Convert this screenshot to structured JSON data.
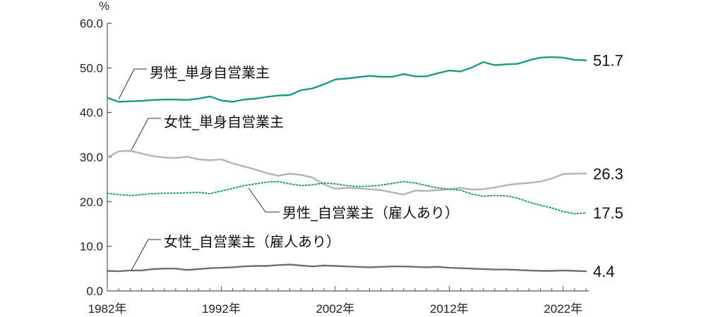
{
  "chart_data": {
    "type": "line",
    "unit": "%",
    "ylim": [
      0,
      60
    ],
    "y_ticks": [
      "0.0",
      "10.0",
      "20.0",
      "30.0",
      "40.0",
      "50.0",
      "60.0"
    ],
    "x_ticks": [
      {
        "year": 1982,
        "label": "1982年"
      },
      {
        "year": 1992,
        "label": "1992年"
      },
      {
        "year": 2002,
        "label": "2002年"
      },
      {
        "year": 2012,
        "label": "2012年"
      },
      {
        "year": 2022,
        "label": "2022年"
      }
    ],
    "x_start": 1982,
    "x_end": 2024,
    "grid": false,
    "series": [
      {
        "name": "男性_単身自営業主",
        "color": "#1a9a85",
        "dash": "solid",
        "end_label": "51.7",
        "values": [
          43.3,
          42.4,
          42.5,
          42.6,
          42.8,
          42.9,
          42.9,
          42.8,
          43.1,
          43.6,
          42.7,
          42.4,
          42.9,
          43.1,
          43.5,
          43.8,
          43.9,
          45.0,
          45.4,
          46.3,
          47.4,
          47.6,
          47.9,
          48.2,
          48.0,
          48.0,
          48.6,
          48.1,
          48.1,
          48.8,
          49.4,
          49.2,
          50.1,
          51.3,
          50.6,
          50.8,
          50.9,
          51.7,
          52.3,
          52.4,
          52.3,
          51.8,
          51.7
        ]
      },
      {
        "name": "女性_単身自営業主",
        "color": "#b4b4b4",
        "dash": "solid",
        "end_label": "26.3",
        "values": [
          29.9,
          31.3,
          31.4,
          30.8,
          30.2,
          29.9,
          29.8,
          30.1,
          29.5,
          29.3,
          29.5,
          28.6,
          27.9,
          27.2,
          26.4,
          25.8,
          26.3,
          26.0,
          25.4,
          23.9,
          22.9,
          23.1,
          23.0,
          22.8,
          22.6,
          22.1,
          21.6,
          22.5,
          22.4,
          22.6,
          22.8,
          23.1,
          22.7,
          22.8,
          23.2,
          23.7,
          24.0,
          24.2,
          24.5,
          25.2,
          26.2,
          26.3,
          26.3
        ]
      },
      {
        "name": "男性_自営業主（雇人あり）",
        "color": "#1a9a85",
        "dash": "dotted",
        "end_label": "17.5",
        "values": [
          21.9,
          21.6,
          21.4,
          21.6,
          21.8,
          21.9,
          21.9,
          22.0,
          22.1,
          21.8,
          22.4,
          23.0,
          23.6,
          24.0,
          24.4,
          24.5,
          24.0,
          23.6,
          23.8,
          24.2,
          24.0,
          23.6,
          23.4,
          23.5,
          23.7,
          24.1,
          24.5,
          24.2,
          23.6,
          23.1,
          22.8,
          22.6,
          21.7,
          21.2,
          21.4,
          21.3,
          20.8,
          19.9,
          19.2,
          18.6,
          17.8,
          17.3,
          17.5
        ]
      },
      {
        "name": "女性_自営業主（雇人あり）",
        "color": "#6f6f6f",
        "dash": "solid",
        "end_label": "4.4",
        "values": [
          4.5,
          4.4,
          4.6,
          4.6,
          4.9,
          5.0,
          5.0,
          4.7,
          4.9,
          5.1,
          5.2,
          5.3,
          5.5,
          5.6,
          5.6,
          5.8,
          5.9,
          5.7,
          5.5,
          5.7,
          5.6,
          5.5,
          5.4,
          5.3,
          5.4,
          5.5,
          5.5,
          5.4,
          5.3,
          5.4,
          5.2,
          5.1,
          5.0,
          4.9,
          4.8,
          4.8,
          4.7,
          4.6,
          4.5,
          4.5,
          4.6,
          4.5,
          4.4
        ]
      }
    ]
  }
}
